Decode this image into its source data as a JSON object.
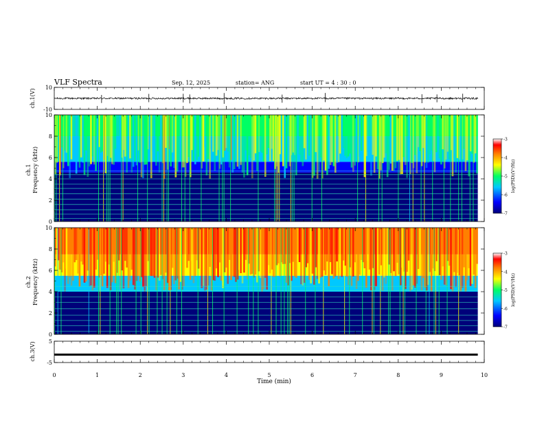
{
  "header": {
    "title": "VLF Spectra",
    "date": "Sep. 12, 2025",
    "station": "station= ANG",
    "start": "start  UT =   4 : 30 : 0"
  },
  "colors": {
    "spectrum": [
      "#00007a",
      "#0000ff",
      "#00c8ff",
      "#00ff64",
      "#ffff00",
      "#ff8000",
      "#ff0000",
      "#ffffff"
    ],
    "trace": "#000000"
  },
  "chart_data": [
    {
      "type": "line",
      "name": "ch1-waveform",
      "ylabel": "ch.1(V)",
      "ylim": [
        -10,
        10
      ],
      "yticks": [
        "10",
        "-10"
      ],
      "baseline": 0,
      "spikes_min": [
        1.1,
        2.2,
        3.0,
        3.15,
        3.95,
        5.3,
        6.3,
        8.55,
        8.9,
        9.5
      ]
    },
    {
      "type": "heatmap",
      "name": "ch1-spectrogram",
      "ylabel": "ch.1\nFrequency (kHz)",
      "xlim": [
        0,
        10
      ],
      "ylim": [
        0,
        10
      ],
      "yticks": [
        "0",
        "2",
        "4",
        "6",
        "8",
        "10"
      ],
      "data_end_min": 9.85,
      "colorbar": {
        "label": "log(PSD)(V²/Hz)",
        "range": [
          -7,
          -3
        ],
        "ticks": [
          "-3",
          "-4",
          "-5",
          "-6",
          "-7"
        ]
      },
      "bands": [
        {
          "from_khz": 0,
          "to_khz": 4.6,
          "level": 0.12
        },
        {
          "from_khz": 4.6,
          "to_khz": 5.6,
          "level": 0.28
        },
        {
          "from_khz": 5.6,
          "to_khz": 8.0,
          "level": 0.42
        },
        {
          "from_khz": 8.0,
          "to_khz": 10,
          "level": 0.55
        }
      ],
      "tones_khz": [
        0.3,
        0.7,
        1.1,
        1.6,
        2.1,
        2.6,
        3.1,
        3.5,
        4.0,
        4.4,
        4.75
      ]
    },
    {
      "type": "heatmap",
      "name": "ch2-spectrogram",
      "ylabel": "ch.2\nFrequency (kHz)",
      "xlim": [
        0,
        10
      ],
      "ylim": [
        0,
        10
      ],
      "yticks": [
        "0",
        "2",
        "4",
        "6",
        "8",
        "10"
      ],
      "data_end_min": 9.85,
      "colorbar": {
        "label": "log(PSD)(V²/Hz)",
        "range": [
          -7,
          -3
        ],
        "ticks": [
          "-3",
          "-4",
          "-5",
          "-6",
          "-7"
        ]
      },
      "bands": [
        {
          "from_khz": 0,
          "to_khz": 4.0,
          "level": 0.12
        },
        {
          "from_khz": 4.0,
          "to_khz": 5.5,
          "level": 0.38
        },
        {
          "from_khz": 5.5,
          "to_khz": 7.5,
          "level": 0.68
        },
        {
          "from_khz": 7.5,
          "to_khz": 10,
          "level": 0.85
        }
      ],
      "tones_khz": [
        0.3,
        0.8,
        1.3,
        1.8,
        2.4,
        3.0,
        3.5,
        4.1,
        4.5
      ]
    },
    {
      "type": "line",
      "name": "ch3-waveform",
      "ylabel": "ch.3(V)",
      "ylim": [
        -5,
        5
      ],
      "yticks": [
        "5",
        "-5"
      ],
      "baseline": -1.3
    }
  ],
  "xaxis": {
    "label": "Time  (min)",
    "ticks": [
      "0",
      "1",
      "2",
      "3",
      "4",
      "5",
      "6",
      "7",
      "8",
      "9",
      "10"
    ],
    "range": [
      0,
      10
    ]
  }
}
